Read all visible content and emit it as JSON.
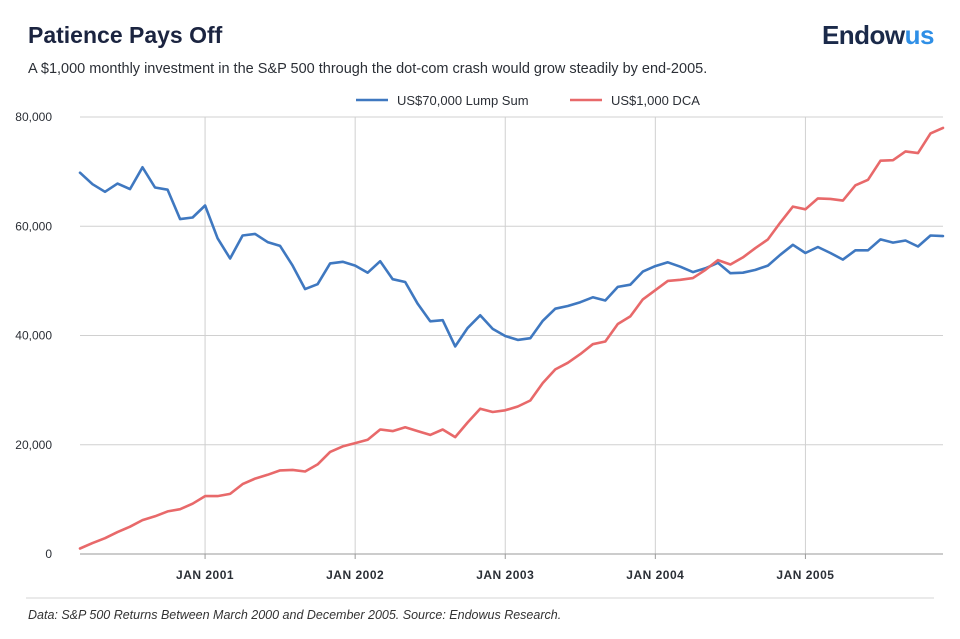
{
  "header": {
    "title": "Patience Pays Off",
    "subtitle": "A $1,000 monthly investment in the S&P 500 through the dot-com crash would grow steadily by end-2005.",
    "logo_base": "Endow",
    "logo_accent": "us"
  },
  "footnote": "Data: S&P 500 Returns Between March 2000 and December 2005. Source: Endowus Research.",
  "colors": {
    "lump": "#3f78c0",
    "dca": "#e8696a",
    "grid": "#d0d0d0",
    "axis": "#9a9a9a"
  },
  "chart_data": {
    "type": "line",
    "title": "Patience Pays Off",
    "xlabel": "",
    "ylabel": "",
    "x_start": "2000-03",
    "x_end": "2005-12",
    "ylim": [
      0,
      80000
    ],
    "yticks": [
      0,
      20000,
      40000,
      60000,
      80000
    ],
    "ytick_labels": [
      "0",
      "20,000",
      "40,000",
      "60,000",
      "80,000"
    ],
    "xtick_labels": [
      "JAN 2001",
      "JAN 2002",
      "JAN 2003",
      "JAN 2004",
      "JAN 2005"
    ],
    "xtick_positions": [
      10,
      22,
      34,
      46,
      58
    ],
    "legend_placement": "top-center",
    "series": [
      {
        "name": "US$70,000 Lump Sum",
        "color_key": "lump",
        "values": [
          69800,
          67700,
          66300,
          67800,
          66800,
          70800,
          67100,
          66700,
          61300,
          61600,
          63800,
          57800,
          54100,
          58300,
          58600,
          57100,
          56400,
          52800,
          48500,
          49400,
          53200,
          53500,
          52800,
          51500,
          53600,
          50300,
          49800,
          45800,
          42600,
          42800,
          38000,
          41400,
          43700,
          41200,
          39900,
          39200,
          39500,
          42700,
          44900,
          45400,
          46100,
          47000,
          46400,
          48900,
          49300,
          51700,
          52700,
          53400,
          52600,
          51600,
          52300,
          53300,
          51400,
          51500,
          52000,
          52800,
          54800,
          56600,
          55100,
          56200,
          55100,
          53900,
          55600,
          55600,
          57600,
          57000,
          57400,
          56300,
          58300,
          58200
        ]
      },
      {
        "name": "US$1,000 DCA",
        "color_key": "dca",
        "values": [
          1000,
          2000,
          2900,
          4000,
          5000,
          6200,
          6900,
          7800,
          8200,
          9200,
          10600,
          10600,
          11000,
          12800,
          13800,
          14500,
          15300,
          15400,
          15100,
          16400,
          18700,
          19700,
          20300,
          20900,
          22800,
          22500,
          23200,
          22500,
          21800,
          22800,
          21400,
          24100,
          26600,
          26000,
          26300,
          27000,
          28100,
          31300,
          33800,
          35000,
          36600,
          38400,
          38900,
          42100,
          43500,
          46600,
          48300,
          50000,
          50200,
          50500,
          52000,
          53800,
          53000,
          54300,
          56000,
          57600,
          60700,
          63600,
          63100,
          65100,
          65000,
          64700,
          67500,
          68500,
          72000,
          72100,
          73700,
          73400,
          77000,
          78000
        ]
      }
    ]
  }
}
